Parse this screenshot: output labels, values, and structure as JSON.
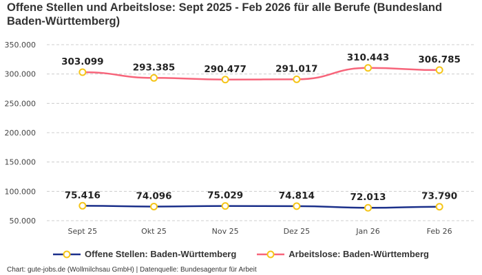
{
  "chart_data": {
    "type": "line",
    "title": "Offene Stellen und Arbeitslose: Sept 2025 - Feb 2026 für alle Berufe (Bundesland Baden-Württemberg)",
    "categories": [
      "Sept 25",
      "Okt 25",
      "Nov 25",
      "Dez 25",
      "Jan 26",
      "Feb 26"
    ],
    "ylim": [
      50000,
      350000
    ],
    "yticks": [
      50000,
      100000,
      150000,
      200000,
      250000,
      300000,
      350000
    ],
    "ytick_labels": [
      "50.000",
      "100.000",
      "150.000",
      "200.000",
      "250.000",
      "300.000",
      "350.000"
    ],
    "grid": true,
    "legend_position": "bottom",
    "marker_color": "#f5c518",
    "series": [
      {
        "name": "Offene Stellen: Baden-Württemberg",
        "color": "#1a2f8a",
        "values": [
          75416,
          74096,
          75029,
          74814,
          72013,
          73790
        ],
        "labels": [
          "75.416",
          "74.096",
          "75.029",
          "74.814",
          "72.013",
          "73.790"
        ]
      },
      {
        "name": "Arbeitslose: Baden-Württemberg",
        "color": "#f7647a",
        "values": [
          303099,
          293385,
          290477,
          291017,
          310443,
          306785
        ],
        "labels": [
          "303.099",
          "293.385",
          "290.477",
          "291.017",
          "310.443",
          "306.785"
        ]
      }
    ]
  },
  "footer": "Chart: gute-jobs.de (Wollmilchsau GmbH) | Datenquelle: Bundesagentur für Arbeit"
}
